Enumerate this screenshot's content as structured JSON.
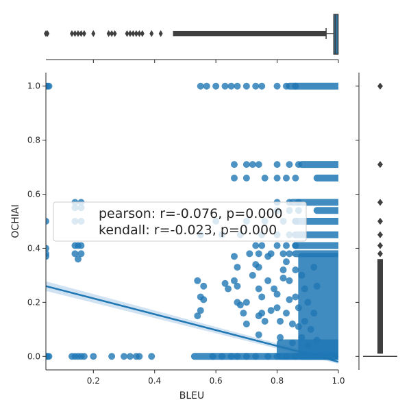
{
  "chart_data": {
    "type": "scatter",
    "title": "",
    "xlabel": "BLEU",
    "ylabel": "OCHIAI",
    "xlim": [
      0.045,
      1.0
    ],
    "ylim": [
      -0.05,
      1.05
    ],
    "x_ticks": [
      "0.2",
      "0.4",
      "0.6",
      "0.8",
      "1.0"
    ],
    "x_tick_values": [
      0.2,
      0.4,
      0.6,
      0.8,
      1.0
    ],
    "y_ticks": [
      "0.0",
      "0.2",
      "0.4",
      "0.6",
      "0.8",
      "1.0"
    ],
    "y_tick_values": [
      0.0,
      0.2,
      0.4,
      0.6,
      0.8,
      1.0
    ],
    "grid": false,
    "annotation": {
      "line1": "pearson: r=-0.076, p=0.000",
      "line2": "kendall: r=-0.023, p=0.000"
    },
    "regression": {
      "x": [
        0.045,
        1.0
      ],
      "y": [
        0.26,
        -0.02
      ]
    },
    "points": [
      [
        0.045,
        1.0
      ],
      [
        0.05,
        1.0
      ],
      [
        0.055,
        1.0
      ],
      [
        0.045,
        0.0
      ],
      [
        0.05,
        0.0
      ],
      [
        0.055,
        0.0
      ],
      [
        0.045,
        0.5
      ],
      [
        0.045,
        0.4
      ],
      [
        0.045,
        0.38
      ],
      [
        0.045,
        0.37
      ],
      [
        0.13,
        0.0
      ],
      [
        0.14,
        0.0
      ],
      [
        0.15,
        0.0
      ],
      [
        0.16,
        0.0
      ],
      [
        0.17,
        0.0
      ],
      [
        0.2,
        0.0
      ],
      [
        0.26,
        0.0
      ],
      [
        0.3,
        0.0
      ],
      [
        0.32,
        0.0
      ],
      [
        0.34,
        0.0
      ],
      [
        0.35,
        0.0
      ],
      [
        0.39,
        0.0
      ],
      [
        0.14,
        0.57
      ],
      [
        0.16,
        0.57
      ],
      [
        0.14,
        0.55
      ],
      [
        0.16,
        0.55
      ],
      [
        0.14,
        0.5
      ],
      [
        0.16,
        0.5
      ],
      [
        0.14,
        0.41
      ],
      [
        0.15,
        0.41
      ],
      [
        0.16,
        0.41
      ],
      [
        0.14,
        0.38
      ],
      [
        0.16,
        0.38
      ],
      [
        0.15,
        0.36
      ],
      [
        0.55,
        1.0
      ],
      [
        0.57,
        1.0
      ],
      [
        0.6,
        1.0
      ],
      [
        0.63,
        1.0
      ],
      [
        0.65,
        1.0
      ],
      [
        0.67,
        1.0
      ],
      [
        0.7,
        1.0
      ],
      [
        0.73,
        1.0
      ],
      [
        0.75,
        1.0
      ],
      [
        0.8,
        1.0
      ],
      [
        0.83,
        1.0
      ],
      [
        0.86,
        1.0
      ],
      [
        0.66,
        0.71
      ],
      [
        0.7,
        0.71
      ],
      [
        0.72,
        0.71
      ],
      [
        0.74,
        0.71
      ],
      [
        0.8,
        0.71
      ],
      [
        0.84,
        0.71
      ],
      [
        0.87,
        0.71
      ],
      [
        0.66,
        0.66
      ],
      [
        0.7,
        0.66
      ],
      [
        0.76,
        0.66
      ],
      [
        0.8,
        0.66
      ],
      [
        0.83,
        0.66
      ],
      [
        0.86,
        0.66
      ],
      [
        0.8,
        0.57
      ],
      [
        0.84,
        0.57
      ],
      [
        0.87,
        0.57
      ],
      [
        0.8,
        0.54
      ],
      [
        0.84,
        0.54
      ],
      [
        0.87,
        0.54
      ],
      [
        0.55,
        0.45
      ],
      [
        0.62,
        0.45
      ],
      [
        0.68,
        0.45
      ],
      [
        0.75,
        0.45
      ],
      [
        0.8,
        0.45
      ],
      [
        0.84,
        0.45
      ],
      [
        0.6,
        0.5
      ],
      [
        0.7,
        0.5
      ],
      [
        0.76,
        0.5
      ],
      [
        0.82,
        0.5
      ],
      [
        0.86,
        0.5
      ],
      [
        0.73,
        0.41
      ],
      [
        0.75,
        0.41
      ],
      [
        0.8,
        0.41
      ],
      [
        0.83,
        0.41
      ],
      [
        0.86,
        0.41
      ],
      [
        0.71,
        0.38
      ],
      [
        0.74,
        0.38
      ],
      [
        0.78,
        0.38
      ],
      [
        0.82,
        0.38
      ],
      [
        0.84,
        0.38
      ],
      [
        0.54,
        0.28
      ],
      [
        0.56,
        0.26
      ],
      [
        0.55,
        0.22
      ],
      [
        0.56,
        0.21
      ],
      [
        0.55,
        0.17
      ],
      [
        0.54,
        0.15
      ],
      [
        0.63,
        0.27
      ],
      [
        0.64,
        0.25
      ],
      [
        0.66,
        0.28
      ],
      [
        0.67,
        0.26
      ],
      [
        0.66,
        0.37
      ],
      [
        0.67,
        0.33
      ],
      [
        0.67,
        0.2
      ],
      [
        0.68,
        0.19
      ],
      [
        0.69,
        0.16
      ],
      [
        0.7,
        0.12
      ],
      [
        0.7,
        0.2
      ],
      [
        0.72,
        0.3
      ],
      [
        0.73,
        0.34
      ],
      [
        0.74,
        0.33
      ],
      [
        0.74,
        0.25
      ],
      [
        0.75,
        0.22
      ],
      [
        0.75,
        0.16
      ],
      [
        0.74,
        0.15
      ],
      [
        0.74,
        0.08
      ],
      [
        0.76,
        0.13
      ],
      [
        0.77,
        0.37
      ],
      [
        0.77,
        0.28
      ],
      [
        0.78,
        0.17
      ],
      [
        0.79,
        0.25
      ],
      [
        0.8,
        0.23
      ],
      [
        0.8,
        0.18
      ],
      [
        0.81,
        0.13
      ],
      [
        0.81,
        0.07
      ],
      [
        0.83,
        0.35
      ],
      [
        0.82,
        0.32
      ],
      [
        0.82,
        0.29
      ],
      [
        0.84,
        0.28
      ],
      [
        0.84,
        0.21
      ],
      [
        0.83,
        0.16
      ],
      [
        0.85,
        0.12
      ],
      [
        0.85,
        0.05
      ],
      [
        0.86,
        0.32
      ],
      [
        0.86,
        0.22
      ],
      [
        0.87,
        0.18
      ],
      [
        0.87,
        0.11
      ],
      [
        0.88,
        0.07
      ],
      [
        0.88,
        0.3
      ],
      [
        0.89,
        0.25
      ],
      [
        0.89,
        0.13
      ],
      [
        0.9,
        0.04
      ],
      [
        0.9,
        0.2
      ],
      [
        0.91,
        0.1
      ],
      [
        0.92,
        0.16
      ],
      [
        0.93,
        0.06
      ],
      [
        0.92,
        0.33
      ],
      [
        0.93,
        0.26
      ],
      [
        0.59,
        0.0
      ],
      [
        0.62,
        0.0
      ],
      [
        0.65,
        0.0
      ],
      [
        0.67,
        0.0
      ],
      [
        0.7,
        0.0
      ],
      [
        0.73,
        0.0
      ],
      [
        0.77,
        0.0
      ],
      [
        0.8,
        0.0
      ],
      [
        0.83,
        0.0
      ],
      [
        0.86,
        0.0
      ],
      [
        0.88,
        0.0
      ],
      [
        0.91,
        0.0
      ],
      [
        0.94,
        0.0
      ],
      [
        0.97,
        0.0
      ],
      [
        1.0,
        0.0
      ]
    ],
    "dense_bands": [
      {
        "x": [
          0.88,
          1.0
        ],
        "y": [
          0.0,
          0.37
        ]
      },
      {
        "x": [
          0.81,
          1.0
        ],
        "y": [
          0.0,
          0.05
        ]
      },
      {
        "x": [
          0.53,
          1.0
        ],
        "y": [
          0.0,
          0.0
        ]
      },
      {
        "x": [
          0.84,
          1.0
        ],
        "y": [
          1.0,
          1.0
        ]
      },
      {
        "x": [
          0.88,
          1.0
        ],
        "y": [
          0.71,
          0.71
        ]
      },
      {
        "x": [
          0.85,
          1.0
        ],
        "y": [
          0.57,
          0.57
        ]
      },
      {
        "x": [
          0.86,
          1.0
        ],
        "y": [
          0.5,
          0.5
        ]
      },
      {
        "x": [
          0.86,
          1.0
        ],
        "y": [
          0.45,
          0.45
        ]
      },
      {
        "x": [
          0.86,
          1.0
        ],
        "y": [
          0.41,
          0.41
        ]
      },
      {
        "x": [
          0.86,
          1.0
        ],
        "y": [
          0.38,
          0.38
        ]
      },
      {
        "x": [
          0.93,
          1.0
        ],
        "y": [
          0.66,
          0.66
        ]
      },
      {
        "x": [
          0.93,
          1.0
        ],
        "y": [
          0.54,
          0.54
        ]
      }
    ],
    "marginal_x_boxplot": {
      "whisker_low": 0.96,
      "q1": 0.985,
      "median": 0.99,
      "q3": 0.999,
      "whisker_high": 1.0,
      "outliers_dense": [
        0.46,
        0.96
      ],
      "outliers": [
        0.045,
        0.05,
        0.13,
        0.14,
        0.15,
        0.16,
        0.17,
        0.2,
        0.25,
        0.26,
        0.27,
        0.31,
        0.32,
        0.33,
        0.34,
        0.35,
        0.36,
        0.39,
        0.42
      ]
    },
    "marginal_y_boxplot": {
      "q1": 0.0,
      "median": 0.0,
      "q3": 0.0,
      "whisker_low": 0.0,
      "whisker_high": 0.0,
      "outliers_dense": [
        0.01,
        0.36
      ],
      "outliers": [
        0.38,
        0.41,
        0.45,
        0.5,
        0.57,
        0.71,
        1.0
      ]
    },
    "colors": {
      "points": "#1f77b4",
      "regression": "#1f77b4",
      "ci_band": "#c6dbef",
      "box_fill": "#3274a1",
      "box_edge": "#3f3f3f",
      "outlier": "#3f3f3f",
      "axis": "#262626"
    }
  }
}
